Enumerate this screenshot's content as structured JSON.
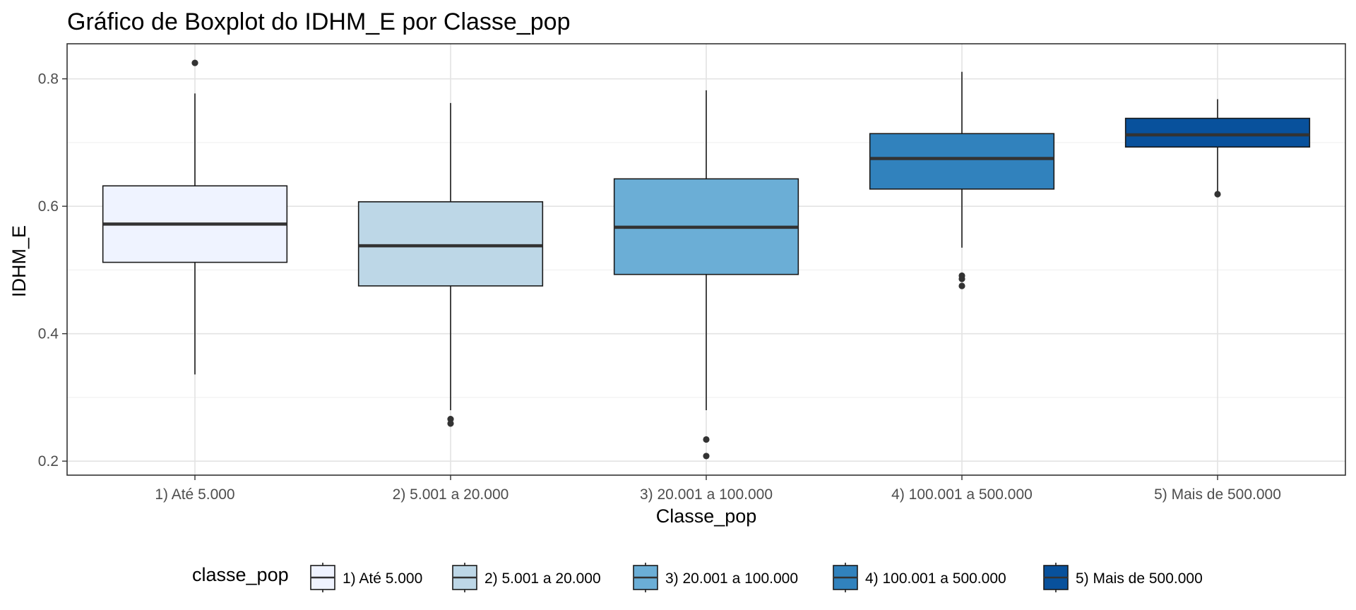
{
  "chart_data": {
    "type": "boxplot",
    "title": "Gráfico de Boxplot do IDHM_E por Classe_pop",
    "xlabel": "Classe_pop",
    "ylabel": "IDHM_E",
    "ylim": [
      0.178,
      0.855
    ],
    "yticks": [
      0.2,
      0.4,
      0.6,
      0.8
    ],
    "ytick_labels": [
      "0.2",
      "0.4",
      "0.6",
      "0.8"
    ],
    "grid": true,
    "legend": {
      "title": "classe_pop",
      "placement": "bottom",
      "entries": [
        "1) Até 5.000",
        "2) 5.001 a 20.000",
        "3) 20.001 a 100.000",
        "4) 100.001 a 500.000",
        "5) Mais de 500.000"
      ]
    },
    "categories": [
      "1) Até 5.000",
      "2) 5.001 a 20.000",
      "3) 20.001 a 100.000",
      "4) 100.001 a 500.000",
      "5) Mais de 500.000"
    ],
    "boxes": [
      {
        "category": "1) Até 5.000",
        "whisker_low": 0.336,
        "q1": 0.512,
        "median": 0.572,
        "q3": 0.632,
        "whisker_high": 0.777,
        "outliers": [
          0.825
        ],
        "fill": "#eff3ff"
      },
      {
        "category": "2) 5.001 a 20.000",
        "whisker_low": 0.28,
        "q1": 0.475,
        "median": 0.538,
        "q3": 0.607,
        "whisker_high": 0.762,
        "outliers": [
          0.266,
          0.259
        ],
        "fill": "#bdd7e7"
      },
      {
        "category": "3) 20.001 a 100.000",
        "whisker_low": 0.28,
        "q1": 0.493,
        "median": 0.567,
        "q3": 0.643,
        "whisker_high": 0.782,
        "outliers": [
          0.234,
          0.208
        ],
        "fill": "#6baed6"
      },
      {
        "category": "4) 100.001 a 500.000",
        "whisker_low": 0.535,
        "q1": 0.627,
        "median": 0.675,
        "q3": 0.714,
        "whisker_high": 0.811,
        "outliers": [
          0.491,
          0.486,
          0.475
        ],
        "fill": "#3182bd"
      },
      {
        "category": "5) Mais de 500.000",
        "whisker_low": 0.62,
        "q1": 0.693,
        "median": 0.712,
        "q3": 0.738,
        "whisker_high": 0.768,
        "outliers": [
          0.619
        ],
        "fill": "#08519c"
      }
    ]
  }
}
